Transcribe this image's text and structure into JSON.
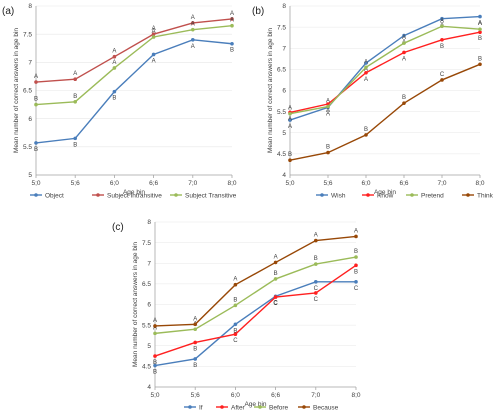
{
  "chart_data": [
    {
      "type": "line",
      "panel_label": "(a)",
      "xlabel": "Age bin",
      "ylabel": "Mean number of correct answers in age bin",
      "categories": [
        "5;0",
        "5;6",
        "6;0",
        "6;6",
        "7;0",
        "8;0"
      ],
      "ylim": [
        5,
        8
      ],
      "yticks": [
        "5",
        "5.5",
        "6",
        "6.5",
        "7",
        "7.5",
        "8"
      ],
      "grid": true,
      "legend_position": "bottom",
      "series": [
        {
          "name": "Object",
          "color": "#4a7ebb",
          "values": [
            5.57,
            5.65,
            6.48,
            7.14,
            7.4,
            7.33
          ],
          "labels": [
            "B",
            "B",
            "B",
            "A",
            "A",
            "B"
          ]
        },
        {
          "name": "Subject Intransitive",
          "color": "#c0504d",
          "values": [
            6.65,
            6.7,
            7.1,
            7.5,
            7.7,
            7.77
          ],
          "labels": [
            "A",
            "A",
            "A",
            "A",
            "A",
            "A"
          ]
        },
        {
          "name": "Subject Transitive",
          "color": "#9bbb59",
          "values": [
            6.25,
            6.3,
            6.9,
            7.45,
            7.58,
            7.65
          ],
          "labels": [
            "B",
            "B",
            "A",
            "A",
            "A",
            "A"
          ]
        }
      ]
    },
    {
      "type": "line",
      "panel_label": "(b)",
      "xlabel": "Age bin",
      "ylabel": "Mean number of correct answers in age bin",
      "categories": [
        "5;0",
        "5;6",
        "6;0",
        "6;6",
        "7;0",
        "8;0"
      ],
      "ylim": [
        4,
        8
      ],
      "yticks": [
        "4",
        "4.5",
        "5",
        "5.5",
        "6",
        "6.5",
        "7",
        "7.5",
        "8"
      ],
      "grid": true,
      "legend_position": "bottom",
      "series": [
        {
          "name": "Wish",
          "color": "#4a7ebb",
          "values": [
            5.3,
            5.6,
            6.65,
            7.3,
            7.7,
            7.75
          ],
          "labels": [
            "A",
            "A",
            "A",
            "A",
            "A",
            "A"
          ]
        },
        {
          "name": "Know",
          "color": "#ff2020",
          "values": [
            5.48,
            5.68,
            6.42,
            6.9,
            7.2,
            7.38
          ],
          "labels": [
            "A",
            "A",
            "A",
            "A",
            "B",
            "B"
          ]
        },
        {
          "name": "Pretend",
          "color": "#9bbb59",
          "values": [
            5.45,
            5.62,
            6.55,
            7.12,
            7.52,
            7.45
          ],
          "labels": [
            "A",
            "A",
            "A",
            "A",
            "A",
            "A"
          ]
        },
        {
          "name": "Think",
          "color": "#984807",
          "values": [
            4.35,
            4.53,
            4.95,
            5.7,
            6.25,
            6.62
          ],
          "labels": [
            "B",
            "B",
            "B",
            "B",
            "C",
            "B"
          ]
        }
      ]
    },
    {
      "type": "line",
      "panel_label": "(c)",
      "xlabel": "Age bin",
      "ylabel": "Mean number of correct answers in age bin",
      "categories": [
        "5;0",
        "5;6",
        "6;0",
        "6;6",
        "7;0",
        "8;0"
      ],
      "ylim": [
        4,
        8
      ],
      "yticks": [
        "4",
        "4.5",
        "5",
        "5.5",
        "6",
        "6.5",
        "7",
        "7.5",
        "8"
      ],
      "grid": true,
      "legend_position": "bottom",
      "series": [
        {
          "name": "If",
          "color": "#4a7ebb",
          "values": [
            4.52,
            4.68,
            5.52,
            6.2,
            6.55,
            6.55
          ],
          "labels": [
            "B",
            "B",
            "B",
            "C",
            "C",
            "C"
          ]
        },
        {
          "name": "After",
          "color": "#ff2020",
          "values": [
            4.75,
            5.08,
            5.28,
            6.18,
            6.28,
            6.95
          ],
          "labels": [
            "B",
            "B",
            "C",
            "C",
            "C",
            "B"
          ]
        },
        {
          "name": "Before",
          "color": "#9bbb59",
          "values": [
            5.3,
            5.4,
            5.98,
            6.62,
            6.98,
            7.15
          ],
          "labels": [
            "A",
            "A",
            "B",
            "B",
            "B",
            "B"
          ]
        },
        {
          "name": "Because",
          "color": "#984807",
          "values": [
            5.48,
            5.52,
            6.48,
            7.02,
            7.55,
            7.65
          ],
          "labels": [
            "A",
            "A",
            "A",
            "A",
            "A",
            "A"
          ]
        }
      ]
    }
  ]
}
